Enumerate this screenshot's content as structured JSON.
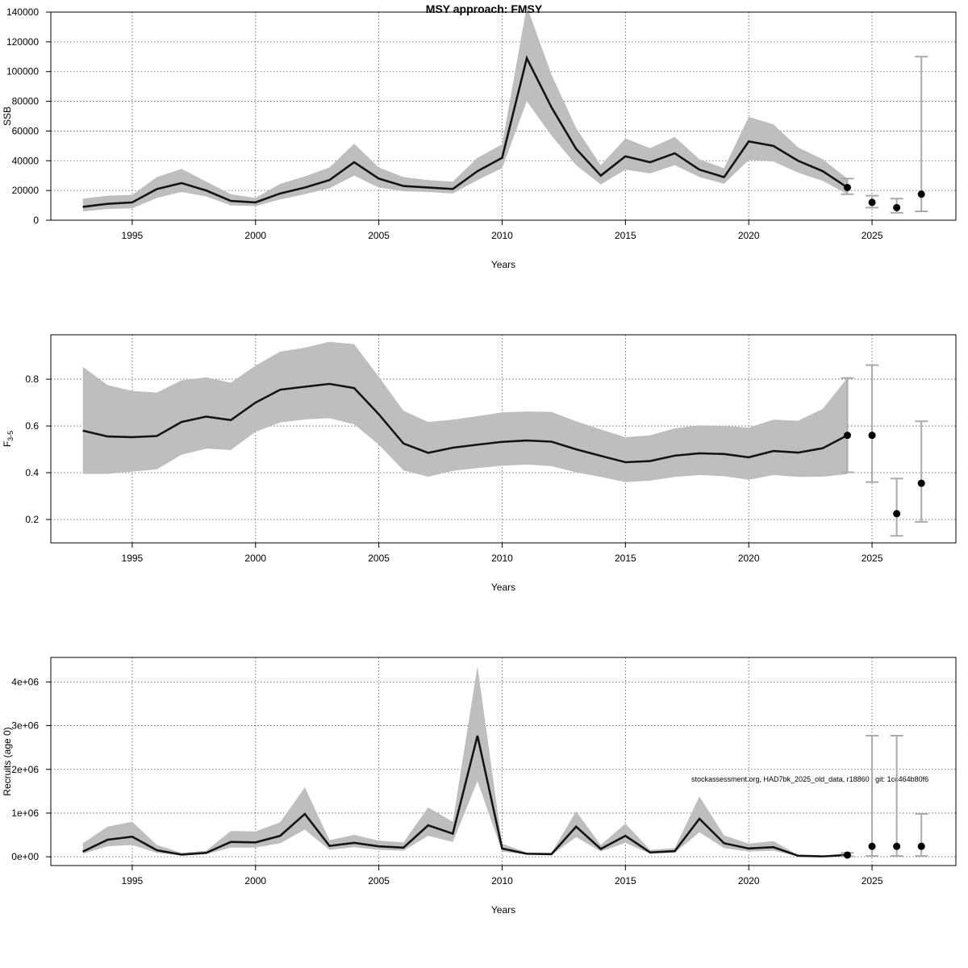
{
  "title": "MSY approach: FMSY",
  "footnote": "stockassessment.org, HAD7bk_2025_old_data, r18860 , git: 1cc464b80f6",
  "colors": {
    "band": "#bebebe",
    "line": "#1a1a1a",
    "grid": "#555555",
    "errorbar": "#aaaaaa",
    "point": "#000000"
  },
  "chart_data": [
    {
      "type": "line",
      "name": "ssb",
      "title": "MSY approach: FMSY",
      "xlabel": "Years",
      "ylabel": "SSB",
      "ylabel_sub": "",
      "xlim": [
        1991.7,
        2028.4
      ],
      "ylim": [
        0,
        140000
      ],
      "xticks": [
        1995,
        2000,
        2005,
        2010,
        2015,
        2020,
        2025
      ],
      "yticks": [
        0,
        20000,
        40000,
        60000,
        80000,
        100000,
        120000,
        140000
      ],
      "ytick_labels": [
        "0",
        "20000",
        "40000",
        "60000",
        "80000",
        "100000",
        "120000",
        "140000"
      ],
      "grid": true,
      "x": [
        1993,
        1994,
        1995,
        1996,
        1997,
        1998,
        1999,
        2000,
        2001,
        2002,
        2003,
        2004,
        2005,
        2006,
        2007,
        2008,
        2009,
        2010,
        2011,
        2012,
        2013,
        2014,
        2015,
        2016,
        2017,
        2018,
        2019,
        2020,
        2021,
        2022,
        2023,
        2024
      ],
      "estimate": [
        9000,
        11000,
        12000,
        21000,
        25000,
        20000,
        13000,
        12000,
        18000,
        22000,
        27000,
        39000,
        28000,
        23000,
        22000,
        21000,
        33000,
        42000,
        109000,
        76000,
        48000,
        30000,
        43000,
        39000,
        45000,
        34000,
        29000,
        53000,
        50000,
        40000,
        33000,
        22000
      ],
      "lower": [
        6000,
        7500,
        8000,
        15000,
        19000,
        16000,
        10000,
        9500,
        14000,
        17500,
        21500,
        30000,
        22000,
        19500,
        19000,
        18000,
        27000,
        35000,
        80000,
        57000,
        37000,
        24000,
        34000,
        31500,
        37000,
        29000,
        24500,
        40500,
        39500,
        32000,
        26500,
        17500
      ],
      "upper": [
        14500,
        16500,
        17000,
        29000,
        34500,
        26000,
        17500,
        15000,
        24500,
        29500,
        35500,
        51500,
        35500,
        29000,
        27000,
        26000,
        42000,
        51000,
        144000,
        98000,
        62000,
        37000,
        55000,
        48500,
        56000,
        41000,
        35000,
        69500,
        64500,
        49000,
        41000,
        28000
      ],
      "forecast": [
        {
          "x": 2024,
          "median": 22000,
          "low": 17500,
          "high": 28000
        },
        {
          "x": 2025,
          "median": 12000,
          "low": 8500,
          "high": 16500
        },
        {
          "x": 2026,
          "median": 8500,
          "low": 5000,
          "high": 14500
        },
        {
          "x": 2027,
          "median": 17500,
          "low": 6000,
          "high": 110000
        }
      ]
    },
    {
      "type": "line",
      "name": "fishing-mortality",
      "title": "",
      "xlabel": "Years",
      "ylabel": "F",
      "ylabel_sub": "3-5",
      "xlim": [
        1991.7,
        2028.4
      ],
      "ylim": [
        0.1,
        0.99
      ],
      "xticks": [
        1995,
        2000,
        2005,
        2010,
        2015,
        2020,
        2025
      ],
      "yticks": [
        0.2,
        0.4,
        0.6,
        0.8
      ],
      "ytick_labels": [
        "0.2",
        "0.4",
        "0.6",
        "0.8"
      ],
      "grid": true,
      "x": [
        1993,
        1994,
        1995,
        1996,
        1997,
        1998,
        1999,
        2000,
        2001,
        2002,
        2003,
        2004,
        2005,
        2006,
        2007,
        2008,
        2009,
        2010,
        2011,
        2012,
        2013,
        2014,
        2015,
        2016,
        2017,
        2018,
        2019,
        2020,
        2021,
        2022,
        2023,
        2024
      ],
      "estimate": [
        0.58,
        0.555,
        0.552,
        0.557,
        0.617,
        0.64,
        0.625,
        0.7,
        0.755,
        0.768,
        0.78,
        0.762,
        0.65,
        0.525,
        0.485,
        0.507,
        0.52,
        0.532,
        0.538,
        0.533,
        0.5,
        0.472,
        0.445,
        0.45,
        0.473,
        0.483,
        0.48,
        0.466,
        0.493,
        0.486,
        0.505,
        0.56
      ],
      "lower": [
        0.395,
        0.395,
        0.405,
        0.415,
        0.477,
        0.503,
        0.497,
        0.575,
        0.615,
        0.628,
        0.633,
        0.607,
        0.52,
        0.41,
        0.383,
        0.408,
        0.42,
        0.43,
        0.435,
        0.428,
        0.402,
        0.382,
        0.36,
        0.366,
        0.382,
        0.39,
        0.385,
        0.37,
        0.39,
        0.382,
        0.383,
        0.394
      ],
      "upper": [
        0.853,
        0.775,
        0.75,
        0.743,
        0.795,
        0.808,
        0.785,
        0.858,
        0.918,
        0.935,
        0.96,
        0.95,
        0.81,
        0.665,
        0.617,
        0.627,
        0.642,
        0.658,
        0.662,
        0.66,
        0.62,
        0.585,
        0.552,
        0.56,
        0.59,
        0.603,
        0.6,
        0.593,
        0.627,
        0.622,
        0.673,
        0.805
      ],
      "forecast": [
        {
          "x": 2024,
          "median": 0.56,
          "low": 0.402,
          "high": 0.805
        },
        {
          "x": 2025,
          "median": 0.56,
          "low": 0.36,
          "high": 0.86
        },
        {
          "x": 2026,
          "median": 0.225,
          "low": 0.13,
          "high": 0.375
        },
        {
          "x": 2027,
          "median": 0.355,
          "low": 0.19,
          "high": 0.62
        }
      ]
    },
    {
      "type": "line",
      "name": "recruits",
      "title": "",
      "xlabel": "Years",
      "ylabel": "Recruits (age 0)",
      "ylabel_sub": "",
      "xlim": [
        1991.7,
        2028.4
      ],
      "ylim": [
        -200000,
        4560000
      ],
      "xticks": [
        1995,
        2000,
        2005,
        2010,
        2015,
        2020,
        2025
      ],
      "yticks": [
        0,
        1000000,
        2000000,
        3000000,
        4000000
      ],
      "ytick_labels": [
        "0e+00",
        "1e+06",
        "2e+06",
        "3e+06",
        "4e+06"
      ],
      "grid": true,
      "x": [
        1993,
        1994,
        1995,
        1996,
        1997,
        1998,
        1999,
        2000,
        2001,
        2002,
        2003,
        2004,
        2005,
        2006,
        2007,
        2008,
        2009,
        2010,
        2011,
        2012,
        2013,
        2014,
        2015,
        2016,
        2017,
        2018,
        2019,
        2020,
        2021,
        2022,
        2023,
        2024
      ],
      "estimate": [
        120000,
        390000,
        460000,
        150000,
        50000,
        90000,
        340000,
        330000,
        480000,
        980000,
        250000,
        320000,
        240000,
        210000,
        720000,
        530000,
        2770000,
        190000,
        70000,
        60000,
        690000,
        180000,
        480000,
        100000,
        130000,
        870000,
        310000,
        190000,
        220000,
        25000,
        10000,
        40000
      ],
      "lower": [
        70000,
        240000,
        270000,
        90000,
        30000,
        60000,
        210000,
        210000,
        310000,
        620000,
        160000,
        220000,
        160000,
        140000,
        480000,
        340000,
        1730000,
        120000,
        50000,
        40000,
        450000,
        120000,
        320000,
        70000,
        90000,
        560000,
        200000,
        120000,
        140000,
        15000,
        5000,
        20000
      ],
      "upper": [
        310000,
        690000,
        800000,
        270000,
        90000,
        140000,
        590000,
        580000,
        790000,
        1590000,
        380000,
        500000,
        370000,
        330000,
        1130000,
        800000,
        4360000,
        300000,
        100000,
        90000,
        1040000,
        270000,
        760000,
        160000,
        200000,
        1380000,
        490000,
        300000,
        360000,
        40000,
        20000,
        90000
      ],
      "forecast": [
        {
          "x": 2024,
          "median": 40000,
          "low": 10000,
          "high": 90000
        },
        {
          "x": 2025,
          "median": 240000,
          "low": 20000,
          "high": 2770000
        },
        {
          "x": 2026,
          "median": 240000,
          "low": 20000,
          "high": 2770000
        },
        {
          "x": 2027,
          "median": 240000,
          "low": 20000,
          "high": 980000
        }
      ]
    }
  ]
}
